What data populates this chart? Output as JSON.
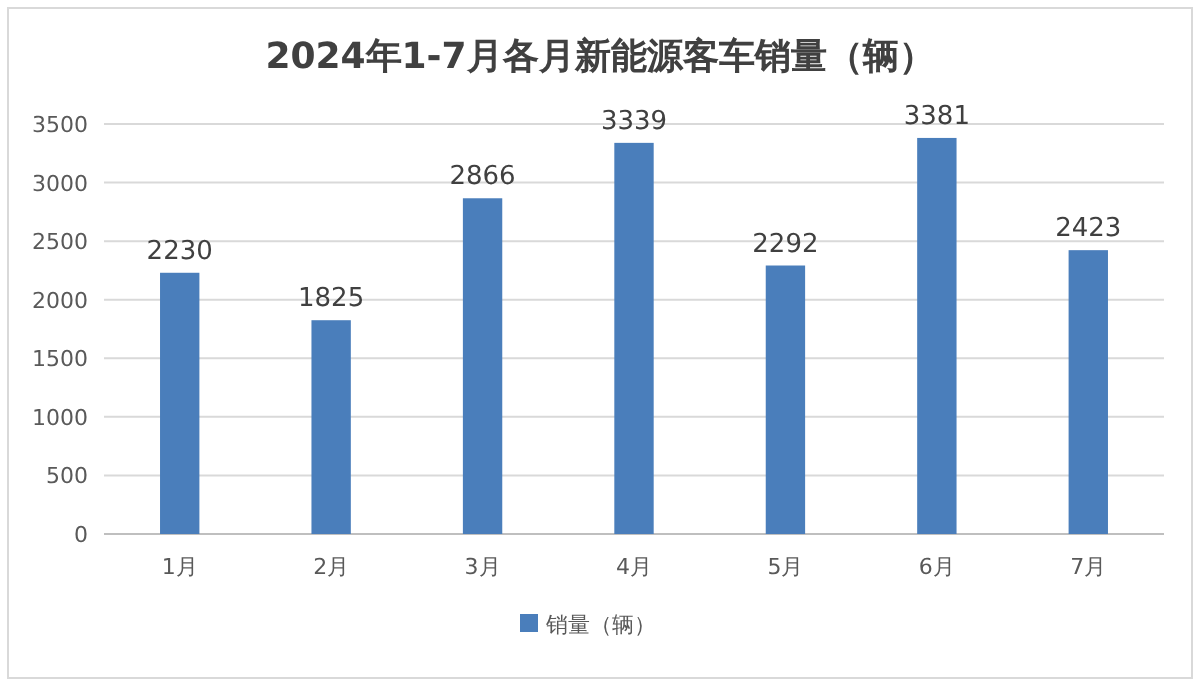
{
  "chart_data": {
    "type": "bar",
    "title": "2024年1-7月各月新能源客车销量（辆）",
    "categories": [
      "1月",
      "2月",
      "3月",
      "4月",
      "5月",
      "6月",
      "7月"
    ],
    "series": [
      {
        "name": "销量（辆）",
        "color": "#4a7ebb",
        "values": [
          2230,
          1825,
          2866,
          3339,
          2292,
          3381,
          2423
        ]
      }
    ],
    "ylim": [
      0,
      3500
    ],
    "yticks": [
      0,
      500,
      1000,
      1500,
      2000,
      2500,
      3000,
      3500
    ],
    "grid": "y",
    "legend": "bottom",
    "data_labels": true
  }
}
